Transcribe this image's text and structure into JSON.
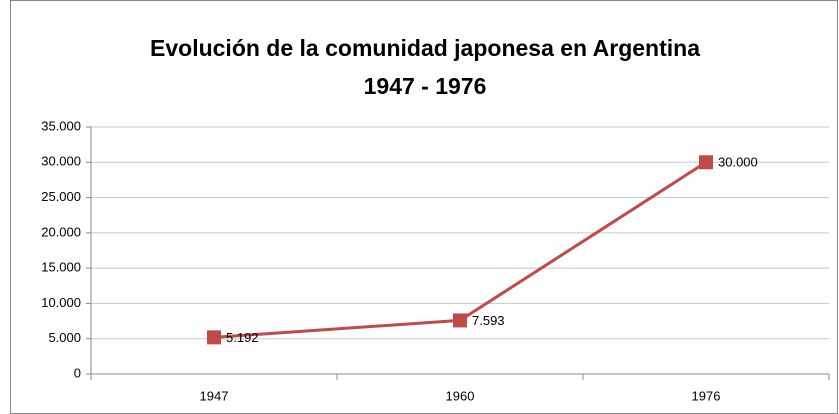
{
  "chart_data": {
    "type": "line",
    "title": "Evolución de la comunidad japonesa en Argentina",
    "subtitle": "1947 - 1976",
    "categories": [
      "1947",
      "1960",
      "1976"
    ],
    "values": [
      5192,
      7593,
      30000
    ],
    "value_labels": [
      "5.192",
      "7.593",
      "30.000"
    ],
    "color": "#be4b48",
    "ylim": [
      0,
      35000
    ],
    "yticks": [
      0,
      {
        "value": 5000,
        "label": "5.000"
      },
      {
        "value": 10000,
        "label": "10.000"
      },
      {
        "value": 15000,
        "label": "15.000"
      },
      {
        "value": 20000,
        "label": "20.000"
      },
      {
        "value": 25000,
        "label": "25.000"
      },
      {
        "value": 30000,
        "label": "30.000"
      },
      {
        "value": 35000,
        "label": "35.000"
      }
    ],
    "grid": true
  }
}
